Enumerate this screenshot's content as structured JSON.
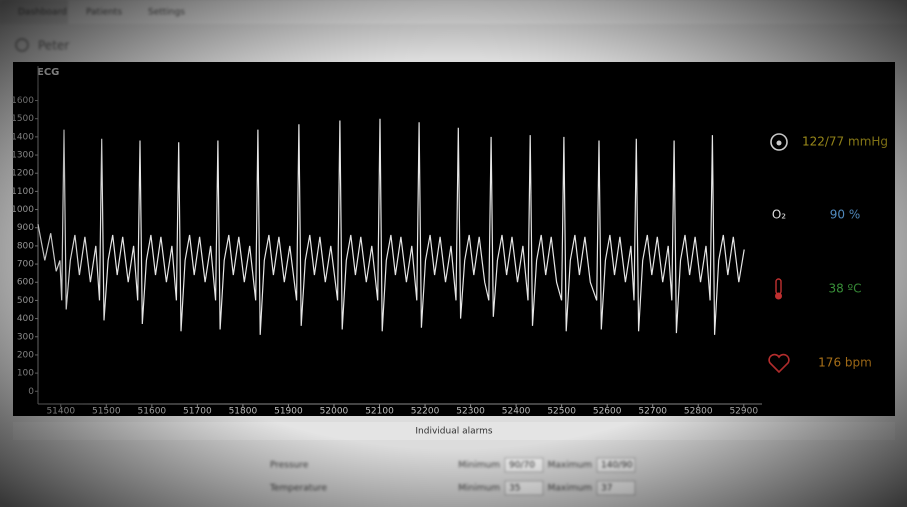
{
  "nav": [
    "Dashboard",
    "Patients",
    "Settings"
  ],
  "patient": "Peter",
  "chart_data": {
    "type": "line",
    "title": "ECG",
    "x": [
      51350,
      51365,
      51378,
      51390,
      51398,
      51402,
      51407,
      51412,
      51421,
      51431,
      51441,
      51453,
      51465,
      51477,
      51485,
      51490,
      51495,
      51504,
      51514,
      51524,
      51536,
      51548,
      51560,
      51569,
      51574,
      51579,
      51588,
      51598,
      51608,
      51620,
      51632,
      51644,
      51654,
      51659,
      51664,
      51673,
      51683,
      51693,
      51705,
      51717,
      51729,
      51740,
      51745,
      51750,
      51759,
      51769,
      51779,
      51791,
      51803,
      51815,
      51828,
      51833,
      51838,
      51847,
      51857,
      51867,
      51879,
      51891,
      51903,
      51918,
      51923,
      51928,
      51937,
      51947,
      51957,
      51969,
      51981,
      51993,
      52008,
      52013,
      52018,
      52027,
      52037,
      52047,
      52059,
      52071,
      52083,
      52096,
      52101,
      52106,
      52115,
      52125,
      52135,
      52147,
      52159,
      52171,
      52182,
      52187,
      52192,
      52201,
      52211,
      52221,
      52233,
      52245,
      52257,
      52268,
      52273,
      52278,
      52287,
      52297,
      52307,
      52319,
      52331,
      52340,
      52345,
      52350,
      52359,
      52369,
      52379,
      52391,
      52403,
      52415,
      52426,
      52431,
      52436,
      52445,
      52455,
      52465,
      52477,
      52489,
      52500,
      52505,
      52510,
      52519,
      52529,
      52539,
      52551,
      52563,
      52577,
      52582,
      52587,
      52596,
      52606,
      52616,
      52628,
      52640,
      52652,
      52659,
      52664,
      52669,
      52678,
      52688,
      52698,
      52710,
      52722,
      52734,
      52742,
      52747,
      52752,
      52761,
      52771,
      52781,
      52793,
      52805,
      52817,
      52826,
      52831,
      52836,
      52845,
      52855,
      52865,
      52877,
      52889,
      52901
    ],
    "series": [
      {
        "name": "ECG",
        "color": "#e6e6e6",
        "values": [
          920,
          720,
          870,
          660,
          720,
          500,
          1440,
          450,
          720,
          860,
          640,
          850,
          600,
          800,
          500,
          1390,
          390,
          720,
          860,
          640,
          850,
          600,
          800,
          500,
          1380,
          370,
          720,
          860,
          640,
          850,
          600,
          800,
          500,
          1370,
          330,
          720,
          860,
          640,
          850,
          600,
          800,
          500,
          1380,
          340,
          720,
          860,
          640,
          850,
          600,
          800,
          500,
          1440,
          310,
          720,
          860,
          640,
          850,
          600,
          800,
          500,
          1470,
          360,
          720,
          860,
          640,
          850,
          600,
          800,
          500,
          1490,
          340,
          720,
          860,
          640,
          850,
          600,
          800,
          500,
          1500,
          330,
          720,
          860,
          640,
          850,
          600,
          800,
          500,
          1480,
          350,
          720,
          860,
          640,
          850,
          600,
          800,
          500,
          1450,
          400,
          720,
          860,
          640,
          850,
          600,
          500,
          1400,
          410,
          720,
          860,
          640,
          850,
          600,
          800,
          500,
          1410,
          360,
          720,
          860,
          640,
          850,
          600,
          500,
          1400,
          330,
          720,
          860,
          640,
          850,
          600,
          500,
          1380,
          340,
          720,
          860,
          640,
          850,
          600,
          800,
          500,
          1390,
          330,
          720,
          860,
          640,
          850,
          600,
          800,
          500,
          1380,
          320,
          720,
          860,
          640,
          850,
          600,
          800,
          500,
          1410,
          310,
          720,
          860,
          640,
          850,
          600,
          780
        ]
      }
    ],
    "xlim": [
      51350,
      52940
    ],
    "xticks": [
      51400,
      51500,
      51600,
      51700,
      51800,
      51900,
      52000,
      52100,
      52200,
      52300,
      52400,
      52500,
      52600,
      52700,
      52800,
      52900
    ],
    "ylim": [
      -70,
      1790
    ],
    "yticks": [
      0,
      100,
      200,
      300,
      400,
      500,
      600,
      700,
      800,
      900,
      1000,
      1100,
      1200,
      1300,
      1400,
      1500,
      1600
    ]
  },
  "vitals": [
    {
      "value": "122/77 mmHg",
      "color": "#b8a41e"
    },
    {
      "icon": "O₂",
      "value": "90 %",
      "color": "#5b9bd5"
    },
    {
      "value": "38 ºC",
      "color": "#3fa03f"
    },
    {
      "value": "176 bpm",
      "color": "#d08a1e"
    }
  ],
  "alarms": {
    "title": "Individual alarms",
    "rows": [
      {
        "label": "Pressure",
        "min_label": "Minimum",
        "min": "90/70",
        "max_label": "Maximum",
        "max": "140/90"
      },
      {
        "label": "Temperature",
        "min_label": "Minimum",
        "min": "35",
        "max_label": "Maximum",
        "max": "37"
      }
    ]
  }
}
